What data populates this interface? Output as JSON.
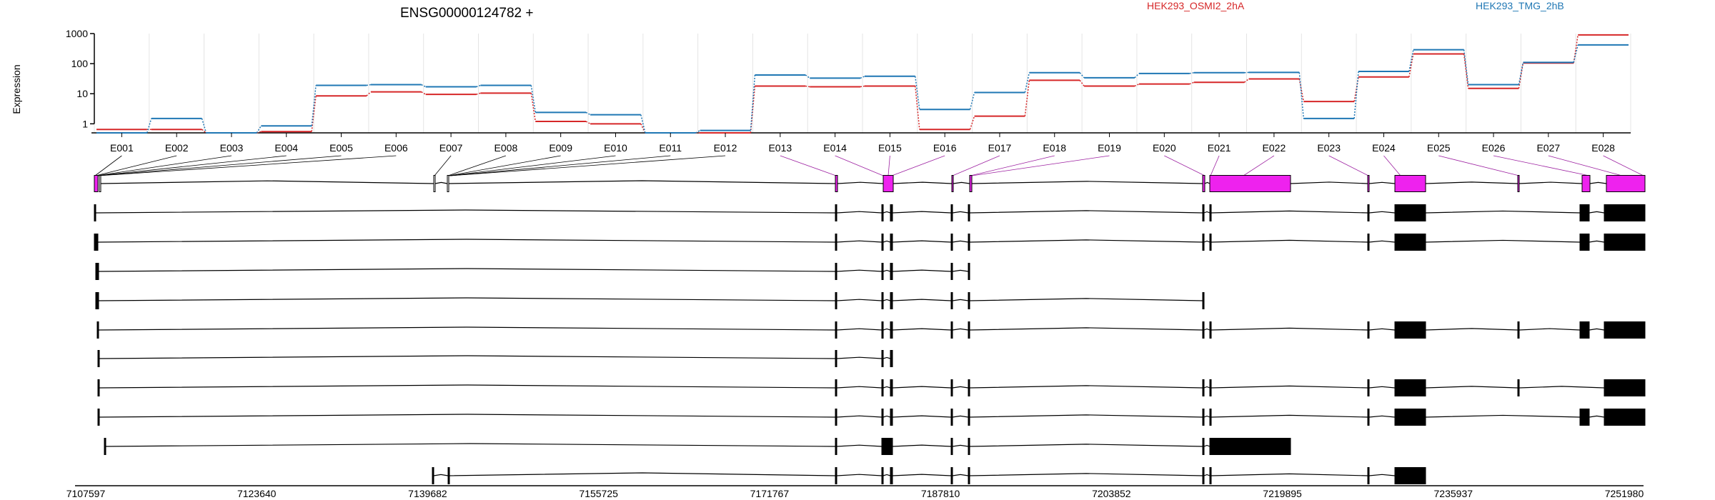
{
  "title": "ENSG00000124782 +",
  "legend": [
    {
      "label": "HEK293_OSMI2_2hA",
      "color": "#d62728"
    },
    {
      "label": "HEK293_TMG_2hB",
      "color": "#1f77b4"
    }
  ],
  "colors": {
    "highlight_exon": "#ee22ee",
    "exon": "#000000",
    "grid": "#e4e4e4"
  },
  "chart_data": {
    "type": "line",
    "scale": "log",
    "ylabel": "Expression",
    "ylim": [
      0.5,
      1000
    ],
    "ytick_labels": [
      "1",
      "10",
      "100",
      "1000"
    ],
    "categories": [
      "E001",
      "E002",
      "E003",
      "E004",
      "E005",
      "E006",
      "E007",
      "E008",
      "E009",
      "E010",
      "E011",
      "E012",
      "E013",
      "E014",
      "E015",
      "E016",
      "E017",
      "E018",
      "E019",
      "E020",
      "E021",
      "E022",
      "E023",
      "E024",
      "E025",
      "E026",
      "E027",
      "E028"
    ],
    "series": [
      {
        "name": "HEK293_OSMI2_2hA",
        "color": "#d62728",
        "values": [
          0.65,
          0.65,
          0.5,
          0.55,
          8.5,
          11.5,
          9.5,
          10.5,
          1.2,
          1.0,
          0.5,
          0.5,
          18,
          17,
          18,
          0.65,
          1.8,
          28,
          18,
          21,
          24,
          31,
          5.5,
          36,
          210,
          15,
          105,
          900
        ]
      },
      {
        "name": "HEK293_TMG_2hB",
        "color": "#1f77b4",
        "values": [
          0.5,
          1.5,
          0.5,
          0.85,
          19,
          20,
          17,
          19,
          2.4,
          2.0,
          0.5,
          0.6,
          42,
          33,
          38,
          3.0,
          11,
          50,
          34,
          47,
          50,
          51,
          1.5,
          55,
          290,
          20,
          110,
          420
        ]
      }
    ],
    "genomic_axis": {
      "tick_labels": [
        "7107597",
        "7123640",
        "7139682",
        "7155725",
        "7171767",
        "7187810",
        "7203852",
        "7219895",
        "7235937",
        "7251980"
      ],
      "start": 7107597,
      "end": 7251980
    }
  }
}
